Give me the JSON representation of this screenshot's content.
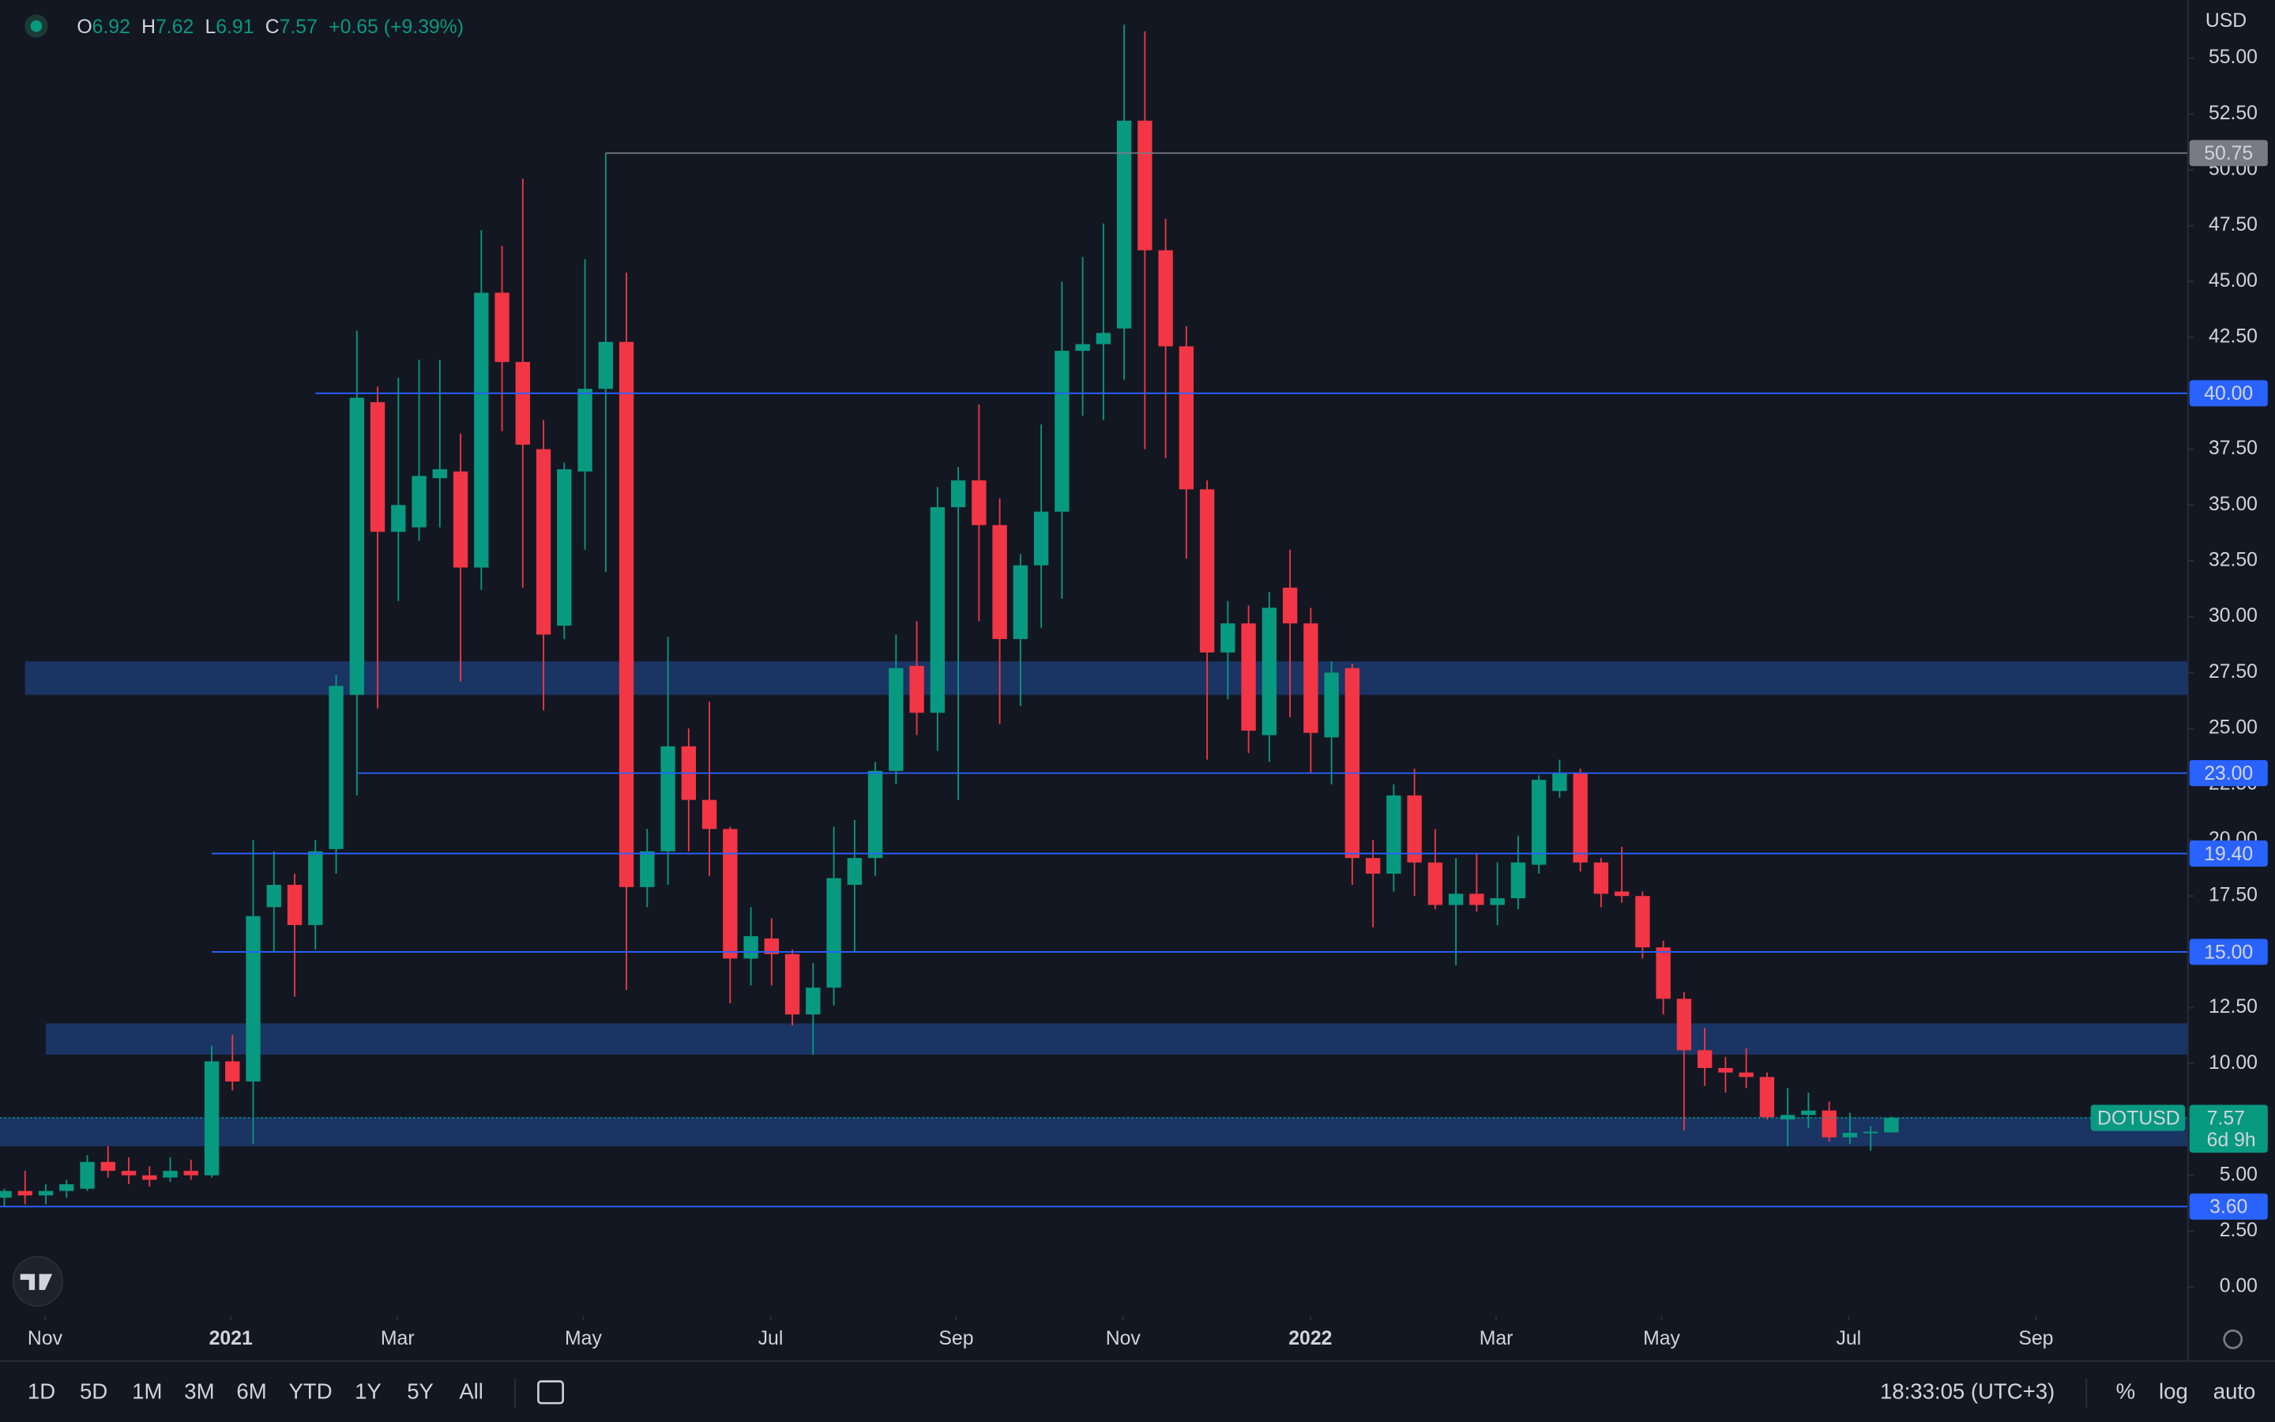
{
  "header": {
    "o": "O",
    "h": "H",
    "l": "L",
    "c": "C",
    "change": "+0.65 (+9.39%)",
    "currency": "USD",
    "symbol": "DOTUSD",
    "countdown": "6d 9h"
  },
  "toolbar": {
    "ranges": [
      "1D",
      "5D",
      "1M",
      "3M",
      "6M",
      "YTD",
      "1Y",
      "5Y",
      "All"
    ],
    "time": "18:33:05 (UTC+3)",
    "percent": "%",
    "log": "log",
    "auto": "auto"
  },
  "chart_data": {
    "type": "candlestick",
    "up_color": "#089981",
    "down_color": "#f23645",
    "x": [
      0,
      1,
      2,
      3,
      4,
      5,
      6,
      7,
      8,
      9,
      10,
      11,
      12,
      13,
      14,
      15,
      16,
      17,
      18,
      19,
      20,
      21,
      22,
      23,
      24,
      25,
      26,
      27,
      28,
      29,
      30,
      31,
      32,
      33,
      34,
      35,
      36,
      37,
      38,
      39,
      40,
      41,
      42,
      43,
      44,
      45,
      46,
      47,
      48,
      49,
      50,
      51,
      52,
      53,
      54,
      55,
      56,
      57,
      58,
      59,
      60,
      61,
      62,
      63,
      64,
      65,
      66,
      67,
      68,
      69,
      70,
      71,
      72,
      73,
      74,
      75,
      76,
      77,
      78,
      79,
      80,
      81,
      82,
      83,
      84,
      85,
      86,
      87,
      88,
      89,
      90,
      91
    ],
    "open": [
      4.0,
      4.3,
      4.1,
      4.3,
      4.4,
      5.6,
      5.2,
      5.0,
      4.9,
      5.2,
      5.0,
      10.1,
      9.2,
      17.0,
      18.0,
      16.2,
      19.6,
      26.5,
      39.6,
      33.8,
      34.0,
      36.2,
      36.5,
      32.2,
      44.5,
      41.4,
      37.5,
      29.6,
      36.5,
      40.2,
      42.3,
      17.9,
      19.5,
      24.2,
      21.8,
      20.5,
      14.7,
      15.6,
      14.9,
      12.2,
      13.4,
      18.0,
      19.2,
      23.1,
      27.8,
      25.7,
      34.9,
      36.1,
      34.1,
      29.0,
      32.3,
      34.7,
      41.9,
      42.2,
      42.9,
      52.2,
      46.4,
      42.1,
      35.7,
      28.4,
      29.7,
      24.7,
      31.3,
      29.7,
      24.6,
      27.7,
      19.2,
      18.5,
      22.0,
      19.0,
      17.1,
      17.6,
      17.1,
      17.4,
      18.9,
      22.2,
      23.0,
      19.0,
      17.7,
      17.5,
      15.2,
      12.9,
      10.6,
      9.8,
      9.6,
      9.4,
      7.5,
      7.7,
      7.9,
      6.7,
      6.9,
      6.92
    ],
    "high": [
      4.4,
      5.2,
      4.6,
      4.8,
      5.9,
      6.3,
      5.8,
      5.4,
      5.8,
      5.7,
      10.8,
      11.3,
      20.0,
      19.5,
      18.5,
      20.0,
      27.4,
      42.8,
      40.3,
      40.7,
      41.5,
      41.5,
      38.2,
      47.3,
      46.6,
      49.6,
      38.8,
      36.9,
      46.0,
      50.75,
      45.4,
      20.5,
      29.1,
      25.0,
      26.2,
      20.6,
      17.0,
      16.5,
      15.1,
      14.5,
      20.6,
      20.9,
      23.5,
      29.2,
      29.8,
      35.8,
      36.7,
      39.5,
      35.3,
      32.8,
      38.6,
      45.0,
      46.1,
      47.6,
      56.5,
      56.2,
      47.8,
      43.0,
      36.1,
      30.7,
      30.5,
      31.1,
      33.0,
      30.4,
      28.0,
      27.9,
      20.0,
      22.5,
      23.2,
      20.5,
      19.2,
      19.4,
      19.0,
      20.2,
      22.9,
      23.6,
      23.2,
      19.2,
      19.7,
      17.7,
      15.5,
      13.2,
      11.6,
      10.3,
      10.7,
      9.6,
      8.9,
      8.7,
      8.3,
      7.8,
      7.2,
      7.62
    ],
    "low": [
      3.6,
      3.7,
      3.7,
      4.0,
      4.3,
      4.9,
      4.6,
      4.5,
      4.7,
      4.8,
      4.9,
      8.8,
      6.4,
      15.0,
      13.0,
      15.1,
      18.5,
      22.0,
      25.9,
      30.7,
      33.4,
      34.0,
      27.1,
      31.2,
      38.3,
      31.3,
      25.8,
      29.0,
      33.0,
      32.0,
      13.3,
      17.0,
      18.0,
      19.5,
      18.4,
      12.7,
      13.5,
      13.5,
      11.7,
      10.4,
      12.6,
      15.0,
      18.4,
      22.5,
      24.7,
      24.0,
      21.8,
      29.8,
      25.2,
      26.0,
      29.5,
      30.8,
      39.0,
      38.8,
      40.6,
      37.5,
      37.1,
      32.6,
      23.6,
      26.3,
      23.9,
      23.5,
      25.5,
      23.0,
      22.5,
      18.0,
      16.1,
      17.7,
      17.5,
      16.9,
      14.4,
      16.8,
      16.2,
      16.9,
      18.5,
      21.9,
      18.6,
      17.0,
      17.2,
      14.7,
      12.2,
      7.0,
      9.0,
      8.7,
      8.9,
      7.5,
      6.3,
      7.1,
      6.5,
      6.4,
      6.1,
      6.91
    ],
    "close": [
      4.3,
      4.1,
      4.3,
      4.6,
      5.6,
      5.2,
      5.0,
      4.8,
      5.2,
      5.0,
      10.1,
      9.2,
      16.6,
      18.0,
      16.2,
      19.5,
      26.9,
      39.8,
      33.8,
      35.0,
      36.3,
      36.6,
      32.2,
      44.5,
      41.4,
      37.7,
      29.2,
      36.6,
      40.2,
      42.3,
      17.9,
      19.5,
      24.2,
      21.8,
      20.5,
      14.7,
      15.7,
      14.9,
      12.2,
      13.4,
      18.3,
      19.2,
      23.1,
      27.7,
      25.7,
      34.9,
      36.1,
      34.1,
      29.0,
      32.3,
      34.7,
      41.9,
      42.2,
      42.7,
      52.2,
      46.4,
      42.1,
      35.7,
      28.4,
      29.7,
      24.9,
      30.4,
      29.7,
      24.8,
      27.5,
      19.2,
      18.5,
      22.0,
      19.0,
      17.1,
      17.6,
      17.1,
      17.4,
      19.0,
      22.7,
      23.0,
      19.0,
      17.6,
      17.5,
      15.2,
      12.9,
      10.6,
      9.8,
      9.6,
      9.4,
      7.6,
      7.7,
      7.9,
      6.7,
      6.9,
      6.95,
      7.57
    ],
    "xlim": [
      -0.21,
      105.3
    ],
    "xticks": [
      {
        "value": 1.96,
        "label": "Nov"
      },
      {
        "value": 10.92,
        "label": "2021"
      },
      {
        "value": 18.96,
        "label": "Mar"
      },
      {
        "value": 27.92,
        "label": "May"
      },
      {
        "value": 36.95,
        "label": "Jul"
      },
      {
        "value": 45.9,
        "label": "Sep"
      },
      {
        "value": 53.95,
        "label": "Nov"
      },
      {
        "value": 62.98,
        "label": "2022"
      },
      {
        "value": 71.94,
        "label": "Mar"
      },
      {
        "value": 79.92,
        "label": "May"
      },
      {
        "value": 88.94,
        "label": "Jul"
      },
      {
        "value": 97.97,
        "label": "Sep"
      }
    ],
    "ylim": [
      -1.17,
      57.6
    ],
    "yticks": [
      {
        "value": 0,
        "label": "0.00"
      },
      {
        "value": 2.5,
        "label": "2.50"
      },
      {
        "value": 5,
        "label": "5.00"
      },
      {
        "value": 7.5,
        "label": "7.50"
      },
      {
        "value": 10,
        "label": "10.00"
      },
      {
        "value": 12.5,
        "label": "12.50"
      },
      {
        "value": 15,
        "label": "15.00"
      },
      {
        "value": 17.5,
        "label": "17.50"
      },
      {
        "value": 20,
        "label": "20.00"
      },
      {
        "value": 22.5,
        "label": "22.50"
      },
      {
        "value": 25,
        "label": "25.00"
      },
      {
        "value": 27.5,
        "label": "27.50"
      },
      {
        "value": 30,
        "label": "30.00"
      },
      {
        "value": 32.5,
        "label": "32.50"
      },
      {
        "value": 35,
        "label": "35.00"
      },
      {
        "value": 37.5,
        "label": "37.50"
      },
      {
        "value": 40,
        "label": "40.00"
      },
      {
        "value": 42.5,
        "label": "42.50"
      },
      {
        "value": 45,
        "label": "45.00"
      },
      {
        "value": 47.5,
        "label": "47.50"
      },
      {
        "value": 50,
        "label": "50.00"
      },
      {
        "value": 52.5,
        "label": "52.50"
      },
      {
        "value": 55,
        "label": "55.00"
      }
    ],
    "levels": [
      {
        "value": 50.75,
        "label": "50.75",
        "start": 29,
        "color": "#787b86"
      },
      {
        "value": 40,
        "label": "40.00",
        "start": 15,
        "color": "#2962ff"
      },
      {
        "value": 23,
        "label": "23.00",
        "start": 17,
        "color": "#2962ff"
      },
      {
        "value": 19.4,
        "label": "19.40",
        "start": 10,
        "color": "#2962ff"
      },
      {
        "value": 15,
        "label": "15.00",
        "start": 10,
        "color": "#2962ff"
      },
      {
        "value": 3.6,
        "label": "3.60",
        "start": -0.21,
        "color": "#2962ff"
      }
    ],
    "zones": [
      {
        "low": 26.5,
        "high": 28.0,
        "start": 1
      },
      {
        "low": 10.4,
        "high": 11.8,
        "start": 2
      },
      {
        "low": 6.3,
        "high": 7.6,
        "start": -0.21
      }
    ]
  }
}
